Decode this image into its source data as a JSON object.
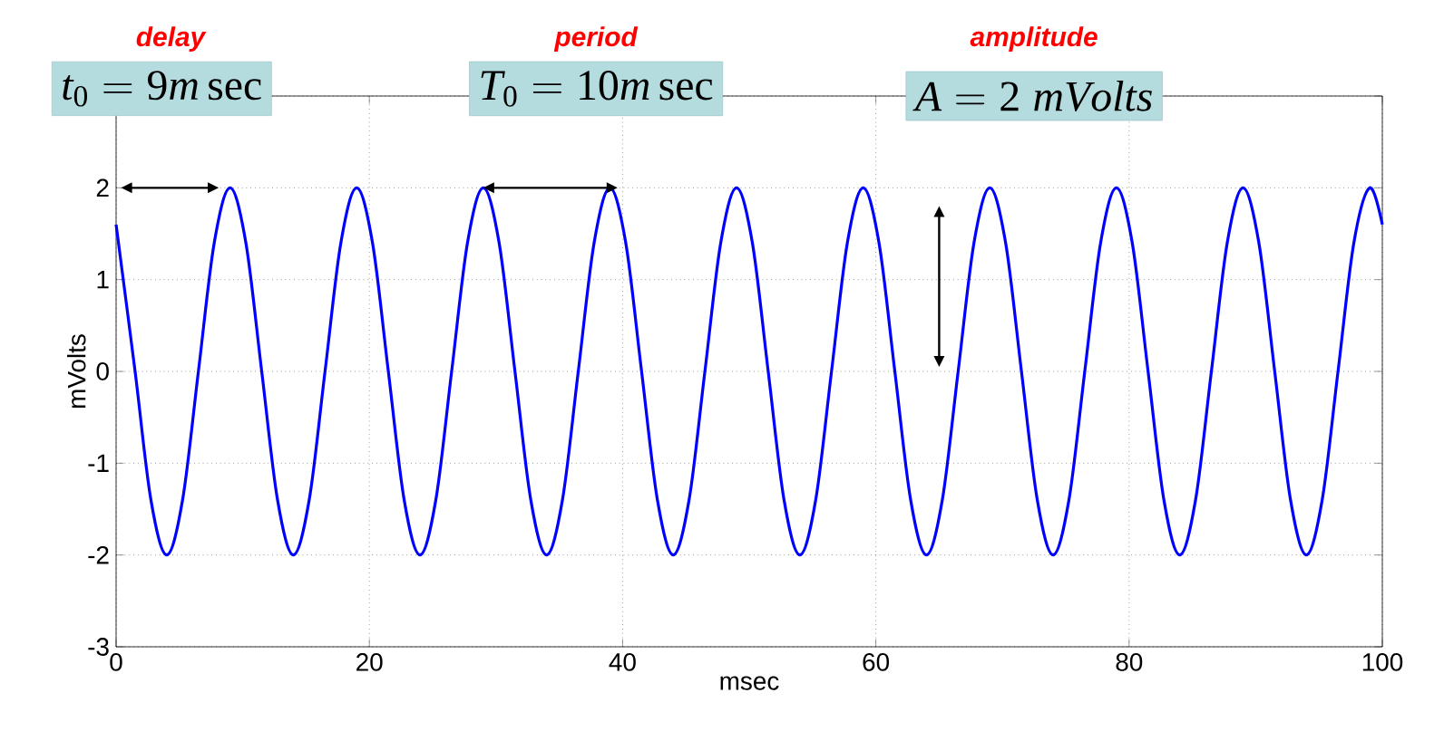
{
  "chart_data": {
    "type": "line",
    "xlabel": "msec",
    "ylabel": "mVolts",
    "xlim": [
      0,
      100
    ],
    "xticks": [
      0,
      20,
      40,
      60,
      80,
      100
    ],
    "ylim": [
      -3,
      3
    ],
    "yticks": [
      -3,
      -2,
      -1,
      0,
      1,
      2,
      {
        "value": 3,
        "label": null
      }
    ],
    "grid": true,
    "marker": "none",
    "line_style": "solid",
    "annotations": [
      "delay",
      "t_0 = 9m\\,\\mathrm{sec}",
      "period",
      "T_0 = 10m\\,\\mathrm{sec}",
      "amplitude",
      "A = 2\\ mVolts"
    ],
    "series": [
      {
        "color": "#0000ff",
        "x": [
          0,
          1.5,
          2.75,
          4,
          5.25,
          6.5,
          7.75,
          9,
          10.25,
          11.5,
          12.75,
          14,
          15.25,
          16.5,
          17.75,
          19,
          20.25,
          21.5,
          22.75,
          24,
          25.25,
          26.5,
          27.75,
          29,
          30.25,
          31.5,
          32.75,
          34,
          35.25,
          36.5,
          37.75,
          39,
          40.25,
          41.5,
          42.75,
          44,
          45.25,
          46.5,
          47.75,
          49,
          50.25,
          51.5,
          52.75,
          54,
          55.25,
          56.5,
          57.75,
          59,
          60.25,
          61.5,
          62.75,
          64,
          65.25,
          66.5,
          67.75,
          69,
          70.25,
          71.5,
          72.75,
          74,
          75.25,
          76.5,
          77.75,
          79,
          80.25,
          81.5,
          82.75,
          84,
          85.25,
          86.5,
          87.75,
          89,
          90.25,
          91.5,
          92.75,
          94,
          95.25,
          96.5,
          97.75,
          99,
          100
        ],
        "values": [
          1.6,
          0,
          -1.4,
          -2,
          -1.4,
          0,
          1.4,
          2,
          1.4,
          0,
          -1.4,
          -2,
          -1.4,
          0,
          1.4,
          2,
          1.4,
          0,
          -1.4,
          -2,
          -1.4,
          0,
          1.4,
          2,
          1.4,
          0,
          -1.4,
          -2,
          -1.4,
          0,
          1.4,
          2,
          1.4,
          0,
          -1.4,
          -2,
          -1.4,
          0,
          1.4,
          2,
          1.4,
          0,
          -1.4,
          -2,
          -1.4,
          0,
          1.4,
          2,
          1.4,
          0,
          -1.4,
          -2,
          -1.4,
          0,
          1.4,
          2,
          1.4,
          0,
          -1.4,
          -2,
          -1.4,
          0,
          1.4,
          2,
          1.4,
          0,
          -1.4,
          -2,
          -1.4,
          0,
          1.4,
          2,
          1.4,
          0,
          -1.4,
          -2,
          -1.4,
          0,
          1.4,
          2,
          1.6
        ]
      }
    ]
  }
}
